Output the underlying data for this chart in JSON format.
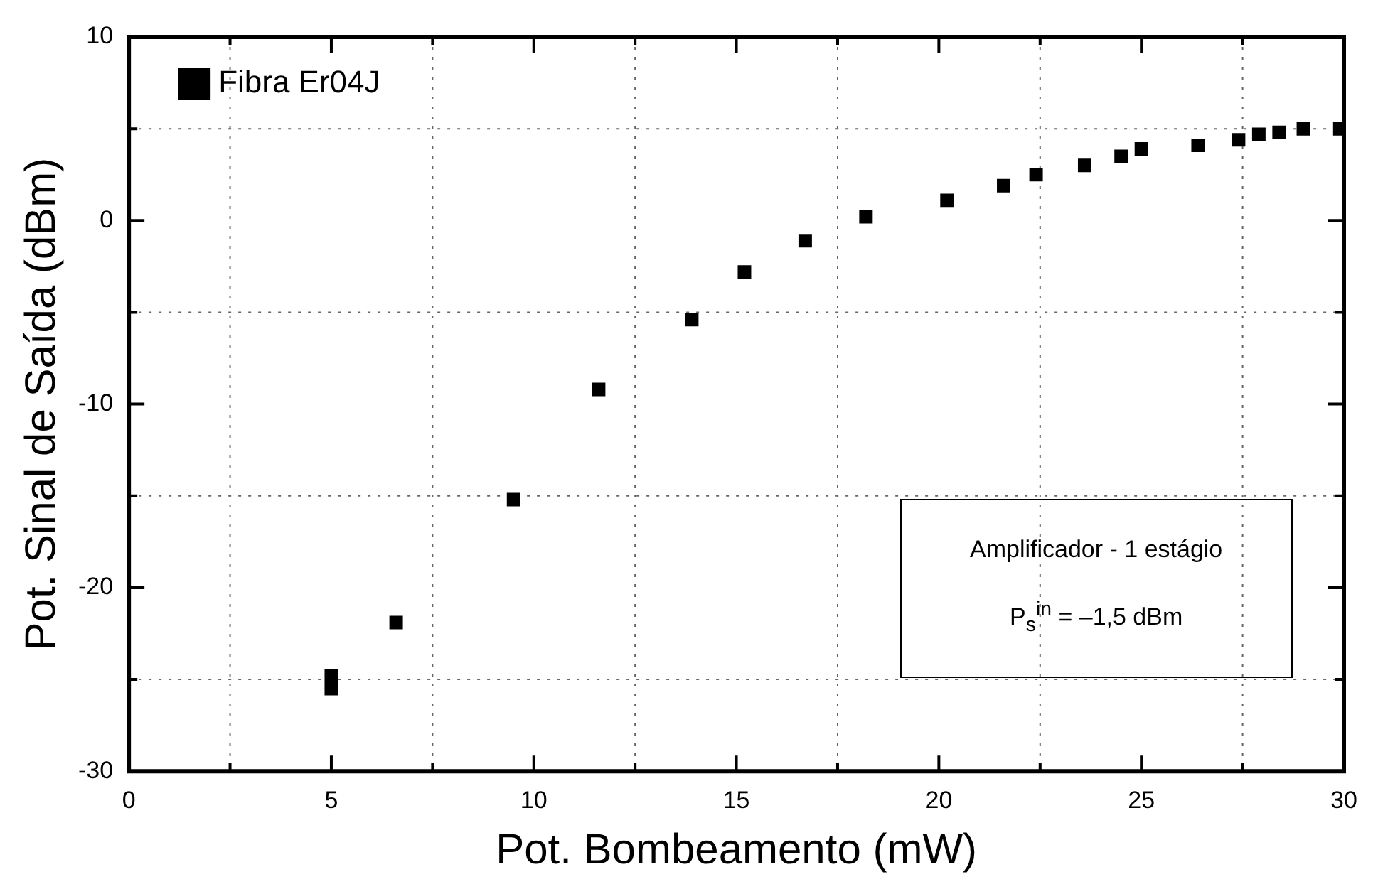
{
  "chart_data": {
    "type": "scatter",
    "xlabel": "Pot. Bombeamento (mW)",
    "ylabel": "Pot. Sinal de Saída (dBm)",
    "series": [
      {
        "name": "Fibra Er04J",
        "color": "#000000",
        "x": [
          5.0,
          5.0,
          6.6,
          9.5,
          11.6,
          13.9,
          15.2,
          16.7,
          18.2,
          20.2,
          21.6,
          22.4,
          23.6,
          24.5,
          25.0,
          26.4,
          27.4,
          27.9,
          28.4,
          29.0,
          29.9
        ],
        "values": [
          -24.8,
          -25.5,
          -21.9,
          -15.2,
          -9.2,
          -5.4,
          -2.8,
          -1.1,
          0.2,
          1.1,
          1.9,
          2.5,
          3.0,
          3.5,
          3.9,
          4.1,
          4.4,
          4.7,
          4.8,
          5.0,
          5.0
        ]
      }
    ],
    "xlim": [
      0,
      30
    ],
    "ylim": [
      -30,
      10
    ],
    "xticks": [
      0,
      {
        "value": 2.5,
        "label": null
      },
      5,
      {
        "value": 7.5,
        "label": null
      },
      10,
      {
        "value": 12.5,
        "label": null
      },
      15,
      {
        "value": 17.5,
        "label": null
      },
      20,
      {
        "value": 22.5,
        "label": null
      },
      25,
      {
        "value": 27.5,
        "label": null
      },
      30
    ],
    "yticks": [
      -30,
      {
        "value": -25,
        "label": null
      },
      -20,
      {
        "value": -15,
        "label": null
      },
      -10,
      {
        "value": -5,
        "label": null
      },
      0,
      {
        "value": 5,
        "label": null
      },
      10
    ],
    "grid": true,
    "legend": "top left",
    "marker": "square",
    "annotations": [
      "Amplificador - 1 estágio",
      "P$_{s}$$^{in}$ = –1,5 dBm"
    ]
  }
}
